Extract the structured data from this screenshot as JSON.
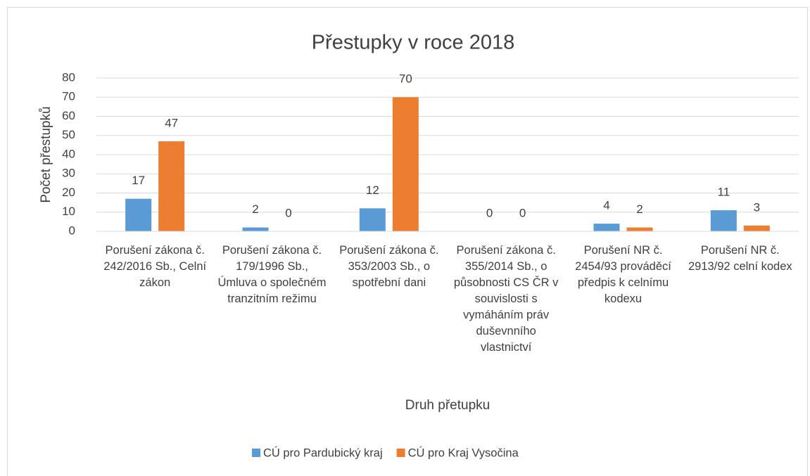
{
  "chart_data": {
    "type": "bar",
    "title": "Přestupky v roce 2018",
    "x_label": "Druh přetupku",
    "y_label": "Počet přestupků",
    "categories": [
      "Porušení zákona č. 242/2016 Sb., Celní zákon",
      "Porušení zákona č. 179/1996 Sb., Úmluva o společném tranzitním režimu",
      "Porušení zákona č. 353/2003 Sb., o spotřební dani",
      "Porušení zákona č. 355/2014 Sb., o působnosti CS ČR v souvislosti s vymáháním práv duševnního vlastnictví",
      "Porušení NR č. 2454/93 prováděcí předpis k celnímu kodexu",
      "Porušení NR č. 2913/92 celní kodex"
    ],
    "series": [
      {
        "name": "CÚ pro Pardubický kraj",
        "color": "#5b9bd5",
        "values": [
          17,
          2,
          12,
          0,
          4,
          11
        ]
      },
      {
        "name": "CÚ pro Kraj Vysočina",
        "color": "#ed7d31",
        "values": [
          47,
          0,
          70,
          0,
          2,
          3
        ]
      }
    ],
    "ylim": [
      0,
      80
    ],
    "yticks": [
      0,
      10,
      20,
      30,
      40,
      50,
      60,
      70,
      80
    ],
    "grid": true,
    "legend": "bottom"
  }
}
